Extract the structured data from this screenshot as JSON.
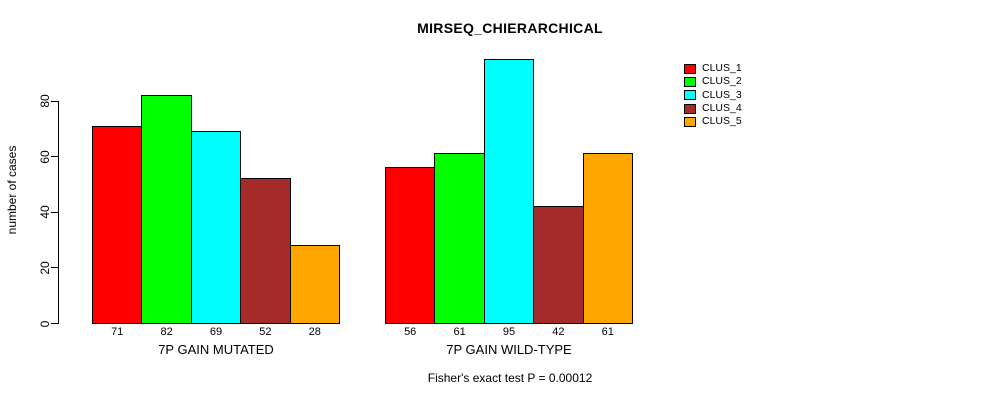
{
  "title": "MIRSEQ_CHIERARCHICAL",
  "footer": {
    "text": "Fisher's exact test P = 0.00012"
  },
  "colors": {
    "background": "#FFFFFF",
    "axis": "#000000",
    "text": "#000000",
    "clus_1": "#FF0000",
    "clus_2": "#00FF00",
    "clus_3": "#00FFFF",
    "clus_4": "#A52A2A",
    "clus_5": "#FFA500"
  },
  "chart_data": {
    "type": "bar",
    "title": "MIRSEQ_CHIERARCHICAL",
    "xlabel": "",
    "ylabel": "number of cases",
    "categories": [
      "7P GAIN MUTATED",
      "7P GAIN WILD-TYPE"
    ],
    "series": [
      {
        "name": "CLUS_1",
        "color": "#FF0000",
        "values": [
          71,
          56
        ]
      },
      {
        "name": "CLUS_2",
        "color": "#00FF00",
        "values": [
          82,
          61
        ]
      },
      {
        "name": "CLUS_3",
        "color": "#00FFFF",
        "values": [
          69,
          95
        ]
      },
      {
        "name": "CLUS_4",
        "color": "#A52A2A",
        "values": [
          52,
          42
        ]
      },
      {
        "name": "CLUS_5",
        "color": "#FFA500",
        "values": [
          28,
          61
        ]
      }
    ],
    "bar_value_labels": [
      [
        71,
        82,
        69,
        52,
        28
      ],
      [
        56,
        61,
        95,
        42,
        61
      ]
    ],
    "yticks": [
      0,
      20,
      40,
      60,
      80
    ],
    "ylim": [
      0,
      95
    ],
    "grid": false,
    "legend_position": "right",
    "legend_entries": [
      "CLUS_1",
      "CLUS_2",
      "CLUS_3",
      "CLUS_4",
      "CLUS_5"
    ],
    "annotation": "Fisher's exact test P = 0.00012"
  }
}
